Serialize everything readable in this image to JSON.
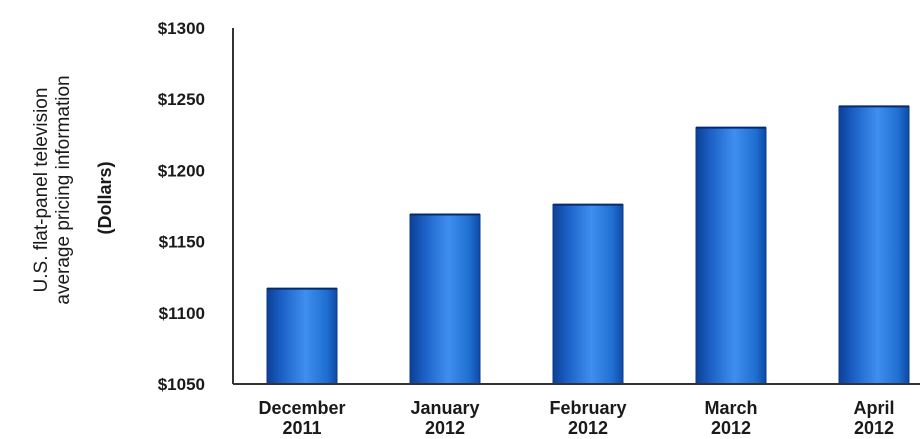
{
  "chart_data": {
    "type": "bar",
    "categories": [
      [
        "December",
        "2011"
      ],
      [
        "January",
        "2012"
      ],
      [
        "February",
        "2012"
      ],
      [
        "March",
        "2012"
      ],
      [
        "April",
        "2012"
      ]
    ],
    "values": [
      1117,
      1169,
      1176,
      1230,
      1245
    ],
    "ylabel_lines": [
      "U.S. flat-panel television",
      "average pricing information"
    ],
    "yunit": "(Dollars)",
    "yticks": [
      "$1300",
      "$1250",
      "$1200",
      "$1150",
      "$1100",
      "$1050"
    ],
    "ylim": [
      1050,
      1300
    ],
    "grid": false,
    "bar_color": "#1f6fd1"
  }
}
